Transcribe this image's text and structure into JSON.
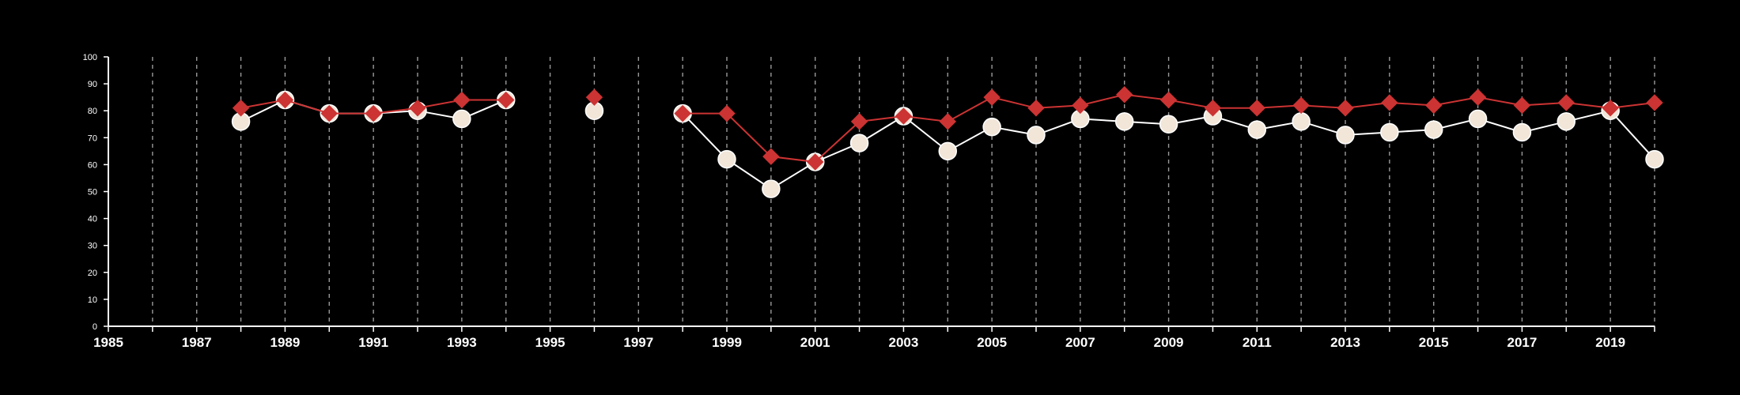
{
  "chart_data": {
    "type": "line",
    "background": "#000000",
    "grid": "vertical dashed",
    "legend": "none",
    "xlim": [
      1985,
      2020
    ],
    "ylim": [
      0,
      100
    ],
    "x_tick_labels": [
      "1985",
      "1987",
      "1989",
      "1991",
      "1993",
      "1995",
      "1997",
      "1999",
      "2001",
      "2003",
      "2005",
      "2007",
      "2009",
      "2011",
      "2013",
      "2015",
      "2017",
      "2019"
    ],
    "y_tick_labels": [
      "0",
      "10",
      "20",
      "30",
      "40",
      "50",
      "60",
      "70",
      "80",
      "90",
      "100"
    ],
    "series": [
      {
        "marker": "circle",
        "color": "#ffffff",
        "marker_fill": "#f2e6d9",
        "points": [
          [
            1988,
            76
          ],
          [
            1989,
            84
          ],
          [
            1990,
            79
          ],
          [
            1991,
            79
          ],
          [
            1992,
            80
          ],
          [
            1993,
            77
          ],
          [
            1994,
            84
          ],
          [
            1996,
            80
          ],
          [
            1998,
            79
          ],
          [
            1999,
            62
          ],
          [
            2000,
            51
          ],
          [
            2001,
            61
          ],
          [
            2002,
            68
          ],
          [
            2003,
            78
          ],
          [
            2004,
            65
          ],
          [
            2005,
            74
          ],
          [
            2006,
            71
          ],
          [
            2007,
            77
          ],
          [
            2008,
            76
          ],
          [
            2009,
            75
          ],
          [
            2010,
            78
          ],
          [
            2011,
            73
          ],
          [
            2012,
            76
          ],
          [
            2013,
            71
          ],
          [
            2014,
            72
          ],
          [
            2015,
            73
          ],
          [
            2016,
            77
          ],
          [
            2017,
            72
          ],
          [
            2018,
            76
          ],
          [
            2019,
            80
          ],
          [
            2020,
            62
          ]
        ]
      },
      {
        "marker": "diamond",
        "color": "#cc3333",
        "marker_fill": "#cc3333",
        "points": [
          [
            1988,
            81
          ],
          [
            1989,
            84
          ],
          [
            1990,
            79
          ],
          [
            1991,
            79
          ],
          [
            1992,
            81
          ],
          [
            1993,
            84
          ],
          [
            1994,
            84
          ],
          [
            1996,
            85
          ],
          [
            1998,
            79
          ],
          [
            1999,
            79
          ],
          [
            2000,
            63
          ],
          [
            2001,
            61
          ],
          [
            2002,
            76
          ],
          [
            2003,
            78
          ],
          [
            2004,
            76
          ],
          [
            2005,
            85
          ],
          [
            2006,
            81
          ],
          [
            2007,
            82
          ],
          [
            2008,
            86
          ],
          [
            2009,
            84
          ],
          [
            2010,
            81
          ],
          [
            2011,
            81
          ],
          [
            2012,
            82
          ],
          [
            2013,
            81
          ],
          [
            2014,
            83
          ],
          [
            2015,
            82
          ],
          [
            2016,
            85
          ],
          [
            2017,
            82
          ],
          [
            2018,
            83
          ],
          [
            2019,
            81
          ],
          [
            2020,
            83
          ]
        ]
      }
    ]
  }
}
